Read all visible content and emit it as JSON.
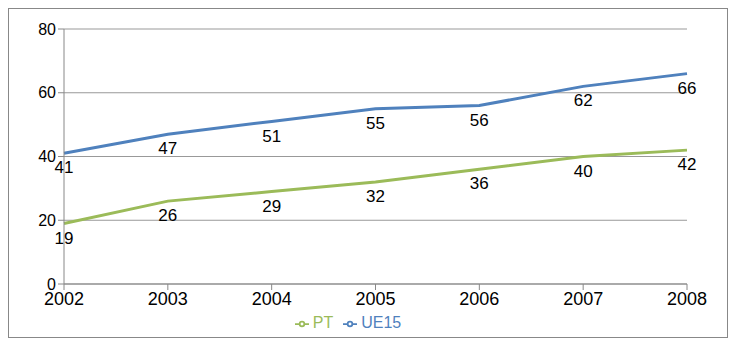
{
  "chart_data": {
    "type": "line",
    "categories": [
      "2002",
      "2003",
      "2004",
      "2005",
      "2006",
      "2007",
      "2008"
    ],
    "series": [
      {
        "name": "PT",
        "color": "#9bbb59",
        "values": [
          19,
          26,
          29,
          32,
          36,
          40,
          42
        ]
      },
      {
        "name": "UE15",
        "color": "#4f81bd",
        "values": [
          41,
          47,
          51,
          55,
          56,
          62,
          66
        ]
      }
    ],
    "ylim": [
      0,
      80
    ],
    "yticks": [
      0,
      20,
      40,
      60,
      80
    ],
    "grid": true,
    "legend": "bottom",
    "data_labels": true
  }
}
